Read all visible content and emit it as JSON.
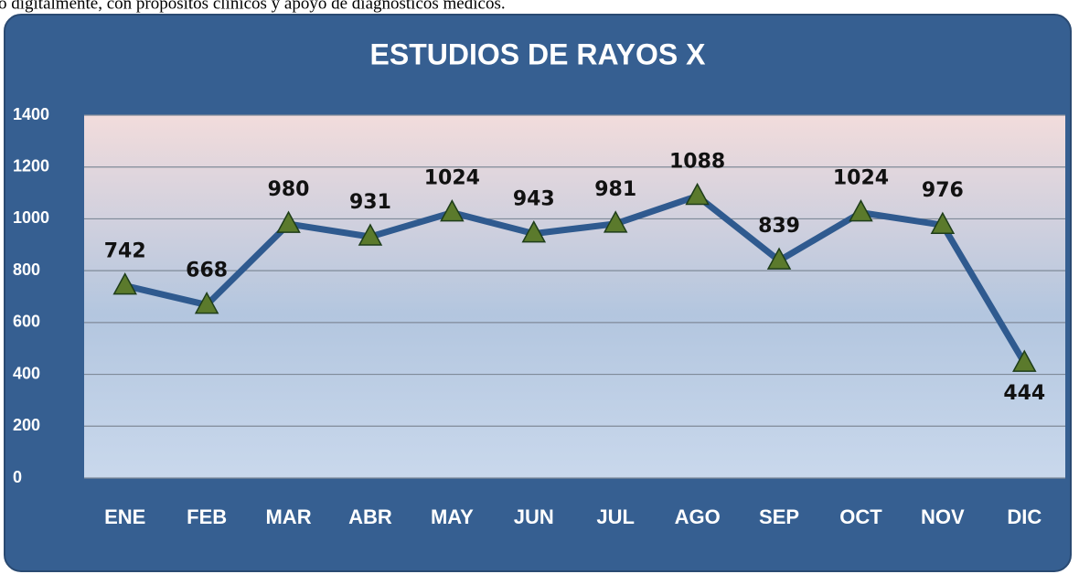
{
  "header_text": "o digitalmente, con propósitos clínicos y apoyo de diagnósticos médicos.",
  "chart_data": {
    "type": "line",
    "title": "ESTUDIOS DE RAYOS X",
    "categories": [
      "ENE",
      "FEB",
      "MAR",
      "ABR",
      "MAY",
      "JUN",
      "JUL",
      "AGO",
      "SEP",
      "OCT",
      "NOV",
      "DIC"
    ],
    "values": [
      742,
      668,
      980,
      931,
      1024,
      943,
      981,
      1088,
      839,
      1024,
      976,
      444
    ],
    "color": "#2f5a8f",
    "marker_color": "#5b7a2c",
    "ylim": [
      0,
      1400
    ],
    "yticks": [
      0,
      200,
      400,
      600,
      800,
      1000,
      1200,
      1400
    ],
    "grid": true
  }
}
